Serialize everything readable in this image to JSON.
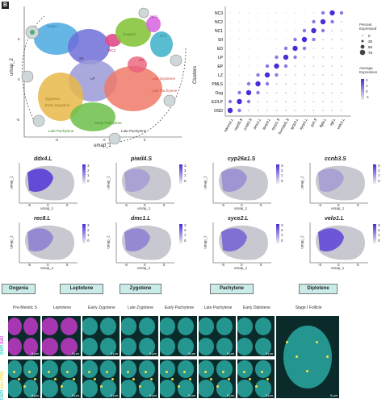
{
  "panel_letters": {
    "b": "B"
  },
  "umap": {
    "xlabel": "umap_1",
    "ylabel": "umap_2",
    "xticks": [
      "-5",
      "0",
      "5"
    ],
    "yticks": [
      "5",
      "0",
      "-5"
    ],
    "clusters": [
      "Stage I",
      "Oogenic",
      "NC3",
      "NC2",
      "NC1",
      "LP",
      "SII",
      "ED",
      "Late Diplotene",
      "Late Pachytene",
      "Early Pachytene",
      "Zygotene",
      "Early Zygotene",
      "Late Pachytene",
      "Pre-Meiotic S",
      "Leptotene"
    ],
    "arrow_label": "Late Pachytene"
  },
  "dotplot": {
    "ylabel": "Clusters",
    "rows": [
      "NC3",
      "NC2",
      "NC1",
      "SII",
      "ED",
      "LP",
      "EP",
      "LZ",
      "PMLS",
      "Oog",
      "EZ/LP",
      "OSD"
    ],
    "cols": [
      "nanos1.L",
      "cep55.S",
      "ccnb3.S",
      "dmc1.L",
      "sycp3.L",
      "sycp1.S",
      "hormad1.S",
      "sycp2.L",
      "sycp1.L",
      "zp4.S",
      "figla.L",
      "vgl.L",
      "velo1.L"
    ],
    "legend_size_title": "Percent Expressed",
    "legend_size_vals": [
      "0",
      "25",
      "50",
      "75"
    ],
    "legend_color_title": "Average Expression",
    "legend_color_vals": [
      "2",
      "1",
      "0",
      "-1"
    ]
  },
  "features": [
    {
      "gene": "ddx4.L",
      "scale": [
        "3",
        "2",
        "1",
        "0"
      ]
    },
    {
      "gene": "piwil4.S",
      "scale": [
        "3",
        "2",
        "1",
        "0"
      ]
    },
    {
      "gene": "cyp26a1.S",
      "scale": [
        "3",
        "2",
        "1",
        "0"
      ]
    },
    {
      "gene": "ccnb3.S",
      "scale": [
        "3",
        "2",
        "1",
        "0"
      ]
    },
    {
      "gene": "rec8.L",
      "scale": [
        "3",
        "2",
        "1",
        "0"
      ]
    },
    {
      "gene": "dmc1.L",
      "scale": [
        "3",
        "2",
        "1",
        "0"
      ]
    },
    {
      "gene": "syce2.L",
      "scale": [
        "3",
        "2",
        "1",
        "0"
      ]
    },
    {
      "gene": "velo1.L",
      "scale": [
        "3",
        "2",
        "1",
        "0"
      ]
    }
  ],
  "feature_axes": {
    "xlabel": "umap_1",
    "ylabel": "umap_2",
    "xticks": [
      "-5",
      "0",
      "5"
    ]
  },
  "stages": {
    "groups": [
      "Oogenia",
      "Leptotene",
      "Zygotene",
      "Pachytene",
      "Diplotene"
    ],
    "columns": [
      "Pre-Meiotic S",
      "Leptotene",
      "Early Zygotene",
      "Late Zygotene",
      "Early Pachytene",
      "Late Pachytene",
      "Early Diplotene",
      "Stage I Follicle"
    ],
    "row_labels": [
      "DAPI",
      "EdU",
      "DAPI",
      "telo-FISH"
    ],
    "scalebars": [
      "5 µm",
      "5 µm",
      "5 µm",
      "5 µm",
      "5 µm",
      "5 µm",
      "5 µm",
      "5 µm"
    ]
  },
  "colors": {
    "accent": "#4a2bd8",
    "dapi": "#2fd1c9",
    "edu": "#e04adf",
    "fish": "#f6e04a"
  }
}
